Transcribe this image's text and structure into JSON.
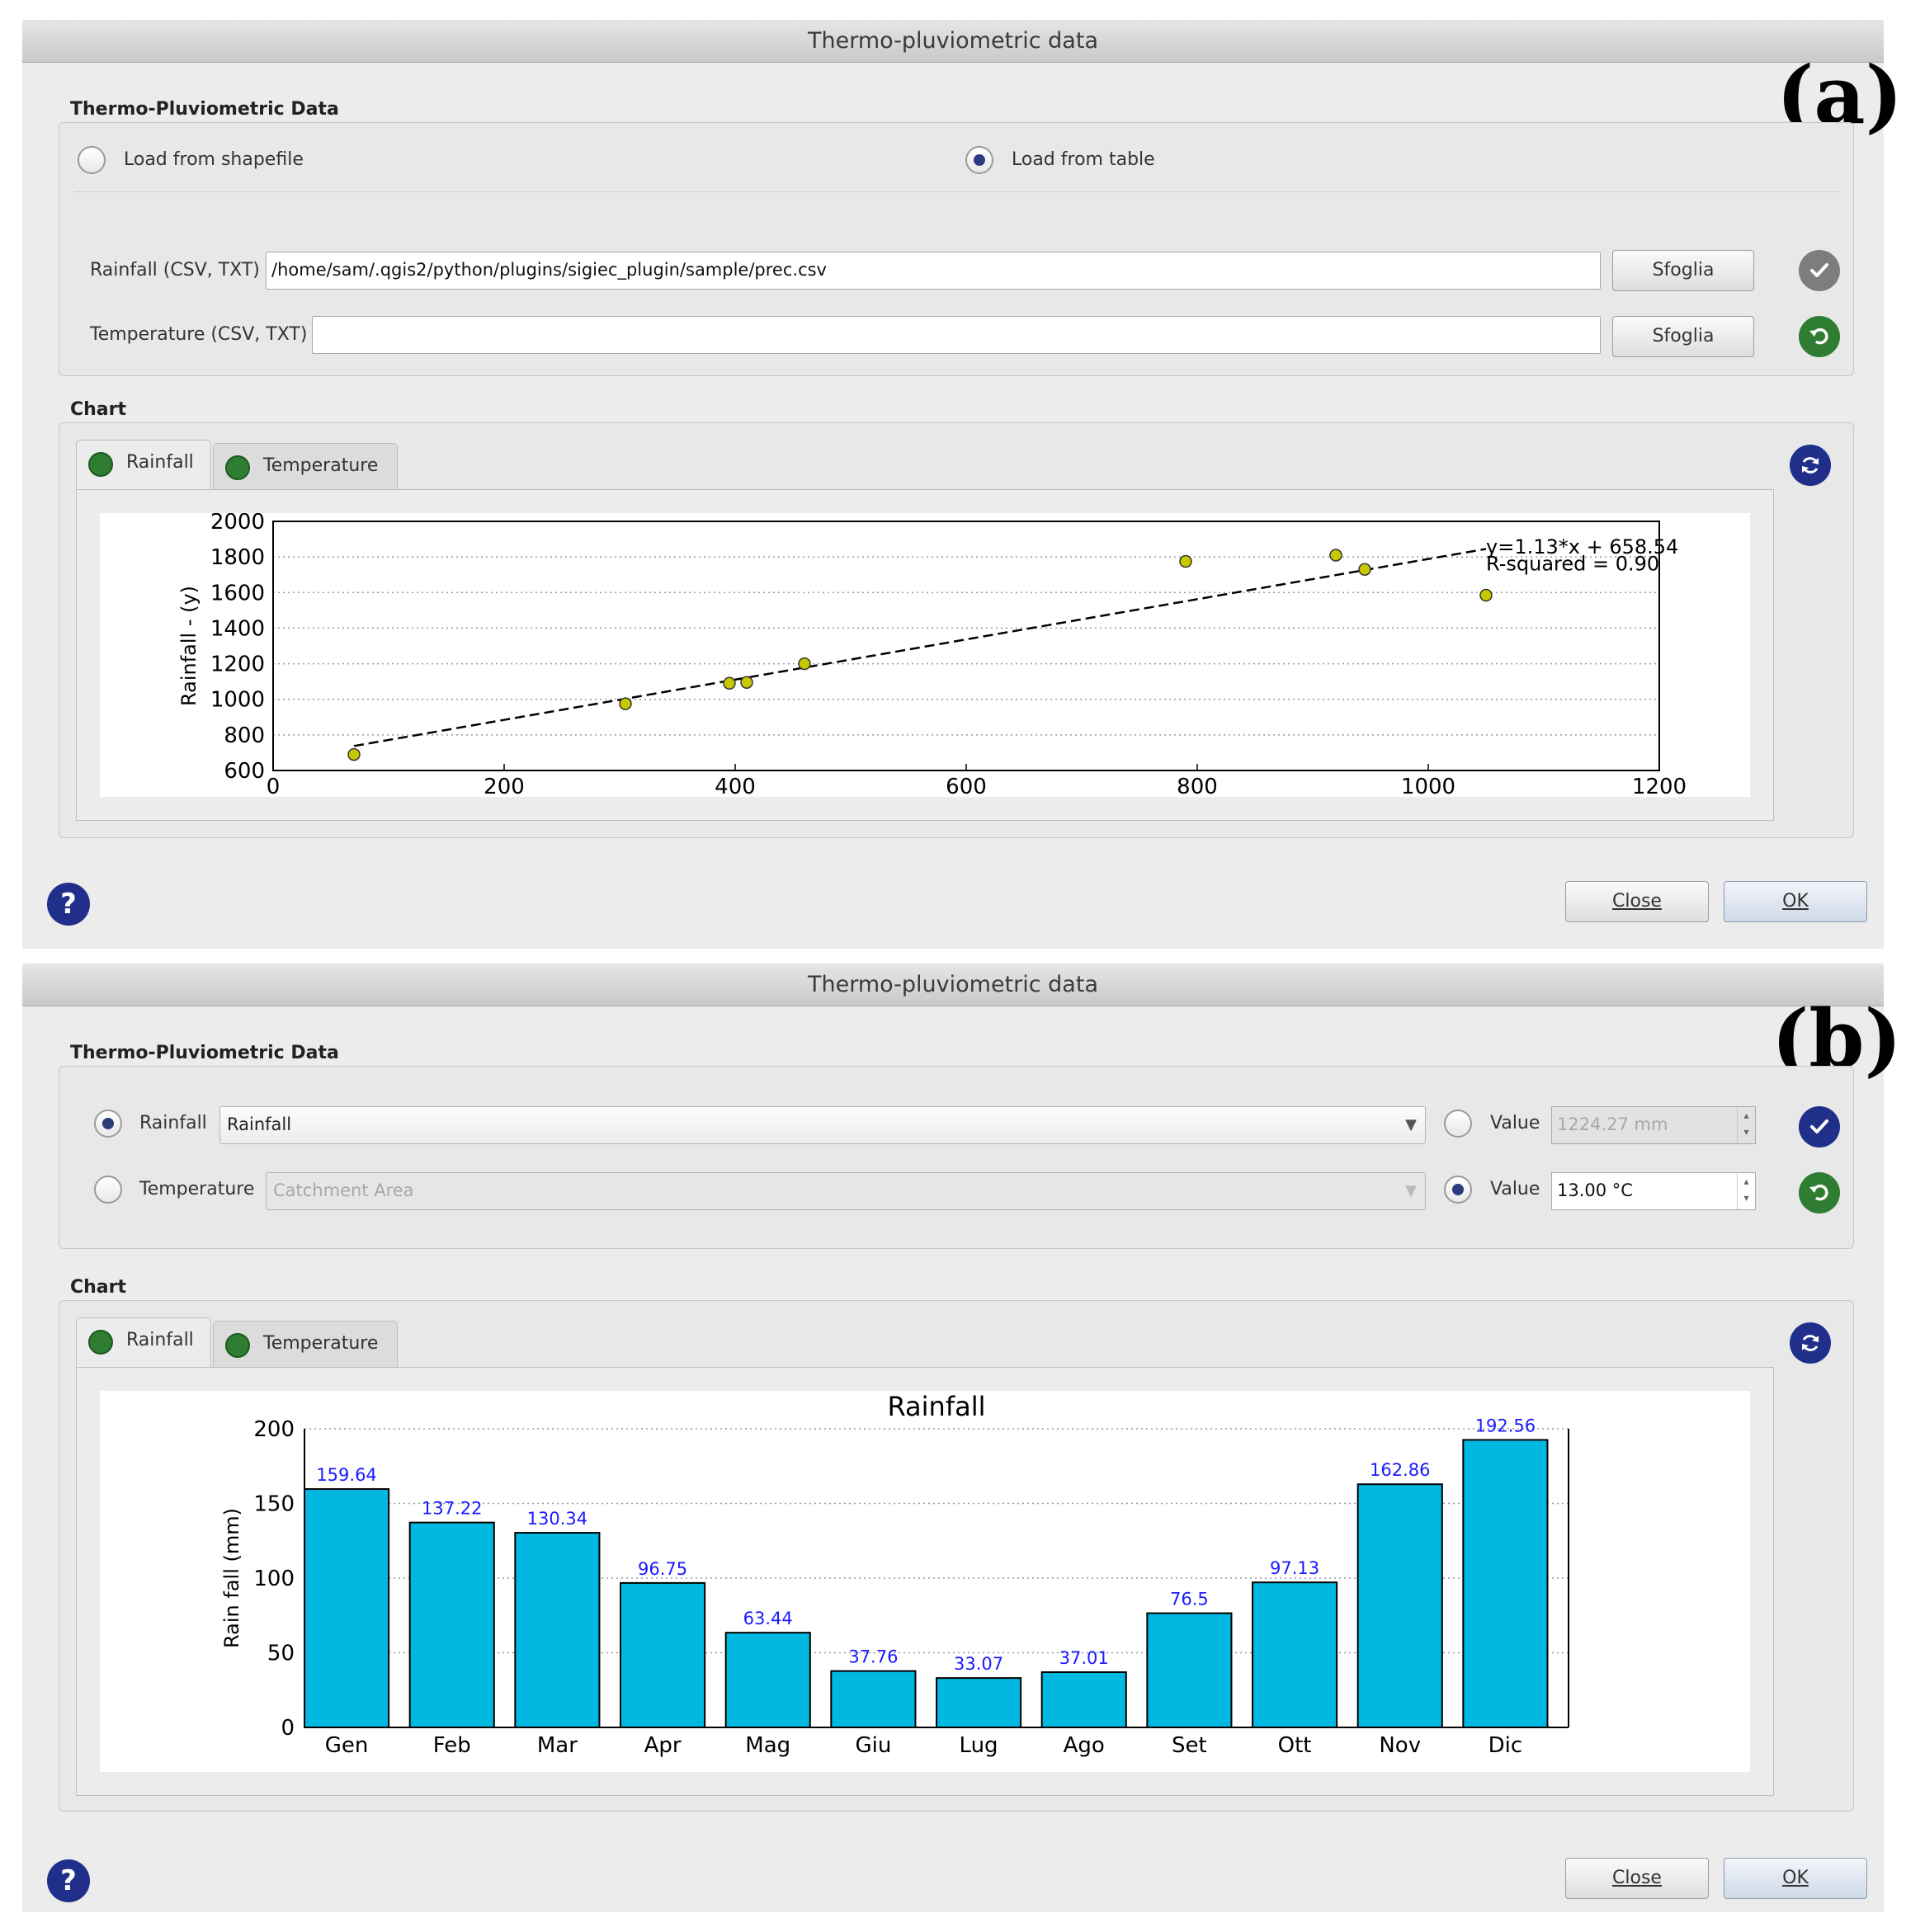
{
  "panel_a": {
    "letter": "(a)",
    "window_title": "Thermo-pluviometric data",
    "data_section_title": "Thermo-Pluviometric Data",
    "radio_shapefile_label": "Load from shapefile",
    "radio_table_label": "Load from table",
    "source_selected": "Load from table",
    "rainfall_label": "Rainfall (CSV, TXT)",
    "rainfall_path": "/home/sam/.qgis2/python/plugins/sigiec_plugin/sample/prec.csv",
    "temperature_label": "Temperature (CSV, TXT)",
    "temperature_path": "",
    "browse_label": "Sfoglia",
    "chart_section_title": "Chart",
    "tabs": [
      "Rainfall",
      "Temperature"
    ],
    "active_tab": "Rainfall",
    "close_label": "Close",
    "ok_label": "OK",
    "help_label": "?",
    "icons": {
      "confirm": "checkmark-icon",
      "reset": "undo-icon",
      "refresh": "refresh-icon",
      "help": "question-icon"
    },
    "icon_colors": {
      "confirm": "#7d7d7d",
      "reset": "#2e7d32",
      "refresh": "#1f2f8a",
      "help": "#1f2f8a"
    }
  },
  "panel_b": {
    "letter": "(b)",
    "window_title": "Thermo-pluviometric data",
    "data_section_title": "Thermo-Pluviometric Data",
    "rainfall_radio_label": "Rainfall",
    "rainfall_combo_value": "Rainfall",
    "rainfall_source_selected": "layer",
    "rainfall_value_label": "Value",
    "rainfall_value": "1224.27 mm",
    "temperature_radio_label": "Temperature",
    "temperature_combo_value": "Catchment Area",
    "temperature_source_selected": "value",
    "temperature_value_label": "Value",
    "temperature_value": "13.00 °C",
    "chart_section_title": "Chart",
    "tabs": [
      "Rainfall",
      "Temperature"
    ],
    "active_tab": "Rainfall",
    "close_label": "Close",
    "ok_label": "OK",
    "help_label": "?",
    "icons": {
      "confirm": "checkmark-icon",
      "reset": "undo-icon",
      "refresh": "refresh-icon",
      "help": "question-icon"
    },
    "icon_colors": {
      "confirm": "#1f2f8a",
      "reset": "#2e7d32",
      "refresh": "#1f2f8a",
      "help": "#1f2f8a"
    }
  },
  "chart_data": [
    {
      "type": "scatter",
      "title": "",
      "xlabel": "",
      "ylabel": "Rainfall - (y)",
      "xlim": [
        0,
        1200
      ],
      "ylim": [
        600,
        2000
      ],
      "xticks": [
        0,
        200,
        400,
        600,
        800,
        1000,
        1200
      ],
      "yticks": [
        600,
        800,
        1000,
        1200,
        1400,
        1600,
        1800,
        2000
      ],
      "grid": "horizontal dotted",
      "points": [
        {
          "x": 70,
          "y": 690
        },
        {
          "x": 305,
          "y": 975
        },
        {
          "x": 395,
          "y": 1090
        },
        {
          "x": 410,
          "y": 1095
        },
        {
          "x": 460,
          "y": 1200
        },
        {
          "x": 790,
          "y": 1775
        },
        {
          "x": 920,
          "y": 1810
        },
        {
          "x": 945,
          "y": 1730
        },
        {
          "x": 1050,
          "y": 1585
        }
      ],
      "fit_line": {
        "slope": 1.13,
        "intercept": 658.54,
        "x_range": [
          70,
          1050
        ]
      },
      "annotations": [
        "y=1.13*x + 658.54",
        "R-squared = 0.90"
      ],
      "colors": {
        "points": "#c8c800",
        "line": "#000000"
      }
    },
    {
      "type": "bar",
      "title": "Rainfall",
      "xlabel": "",
      "ylabel": "Rain fall (mm)",
      "ylim": [
        0,
        200
      ],
      "yticks": [
        0,
        50,
        100,
        150,
        200
      ],
      "grid": "horizontal dotted",
      "categories": [
        "Gen",
        "Feb",
        "Mar",
        "Apr",
        "Mag",
        "Giu",
        "Lug",
        "Ago",
        "Set",
        "Ott",
        "Nov",
        "Dic"
      ],
      "values": [
        159.64,
        137.22,
        130.34,
        96.75,
        63.44,
        37.76,
        33.07,
        37.01,
        76.5,
        97.13,
        162.86,
        192.56
      ],
      "data_labels": [
        "159.64",
        "137.22",
        "130.34",
        "96.75",
        "63.44",
        "37.76",
        "33.07",
        "37.01",
        "76.5",
        "97.13",
        "162.86",
        "192.56"
      ],
      "colors": {
        "bars": "#00b8e0",
        "labels": "#1a1aff"
      }
    }
  ]
}
